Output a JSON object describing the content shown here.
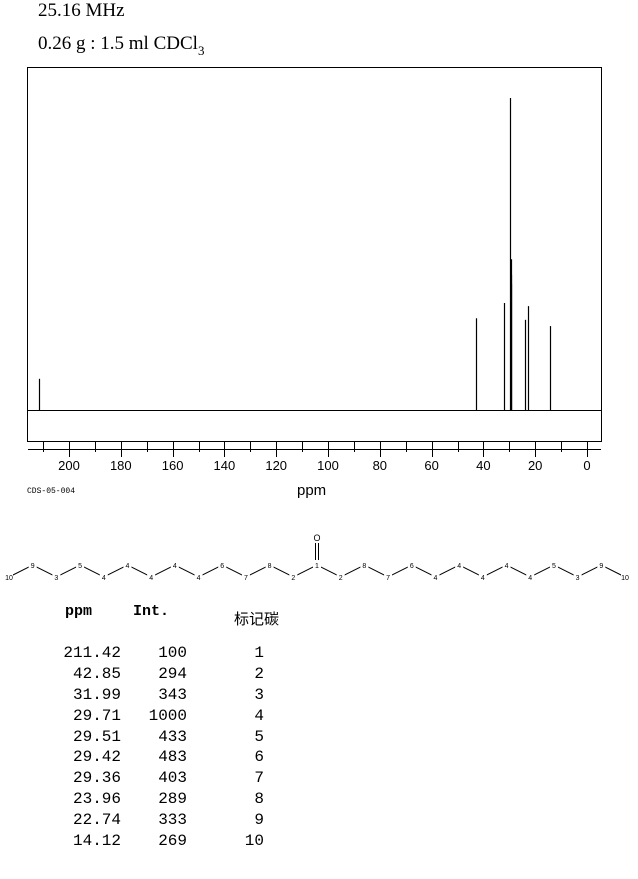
{
  "header": {
    "frequency": "25.16 MHz",
    "sample_prefix": "0.26 g : 1.5 ml CDCl",
    "sample_subscript": "3"
  },
  "footer": {
    "code": "CDS-05-004",
    "axis_unit": "ppm"
  },
  "chart_data": {
    "type": "bar",
    "xlabel": "ppm",
    "x_reversed": true,
    "xlim": [
      220,
      -3
    ],
    "ylim": [
      0,
      1000
    ],
    "xticks_major": [
      200,
      180,
      160,
      140,
      120,
      100,
      80,
      60,
      40,
      20,
      0
    ],
    "peaks": [
      {
        "ppm": 211.42,
        "int": 100
      },
      {
        "ppm": 42.85,
        "int": 294
      },
      {
        "ppm": 31.99,
        "int": 343
      },
      {
        "ppm": 29.71,
        "int": 1000
      },
      {
        "ppm": 29.51,
        "int": 433
      },
      {
        "ppm": 29.42,
        "int": 483
      },
      {
        "ppm": 29.36,
        "int": 403
      },
      {
        "ppm": 23.96,
        "int": 289
      },
      {
        "ppm": 22.74,
        "int": 333
      },
      {
        "ppm": 14.12,
        "int": 269
      }
    ]
  },
  "molecule": {
    "oxygen": "O",
    "labels": [
      "10",
      "9",
      "3",
      "5",
      "4",
      "4",
      "4",
      "4",
      "4",
      "6",
      "7",
      "8",
      "2",
      "1",
      "2",
      "8",
      "7",
      "6",
      "4",
      "4",
      "4",
      "4",
      "4",
      "5",
      "3",
      "9",
      "10"
    ]
  },
  "table": {
    "headers": [
      "ppm",
      "Int.",
      "标记碳"
    ],
    "rows": [
      [
        "211.42",
        "100",
        "1"
      ],
      [
        "42.85",
        "294",
        "2"
      ],
      [
        "31.99",
        "343",
        "3"
      ],
      [
        "29.71",
        "1000",
        "4"
      ],
      [
        "29.51",
        "433",
        "5"
      ],
      [
        "29.42",
        "483",
        "6"
      ],
      [
        "29.36",
        "403",
        "7"
      ],
      [
        "23.96",
        "289",
        "8"
      ],
      [
        "22.74",
        "333",
        "9"
      ],
      [
        "14.12",
        "269",
        "10"
      ]
    ]
  }
}
